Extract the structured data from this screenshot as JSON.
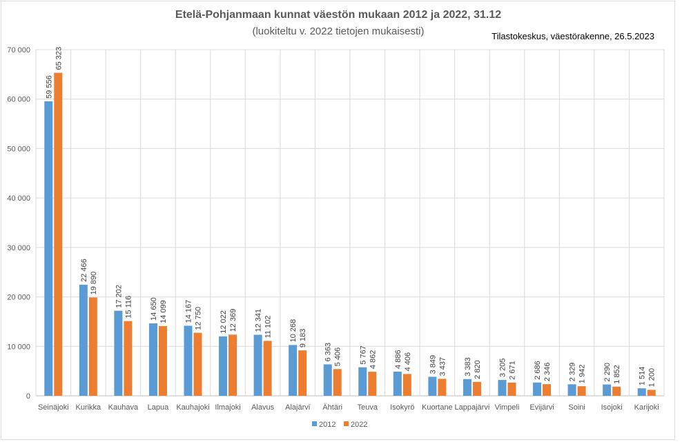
{
  "chart_data": {
    "type": "bar",
    "title": "Etelä-Pohjanmaan kunnat väestön mukaan 2012 ja 2022, 31.12",
    "subtitle": "(luokiteltu v. 2022 tietojen mukaisesti)",
    "source": "Tilastokeskus, väestörakenne, 26.5.2023",
    "xlabel": "",
    "ylabel": "",
    "ylim": [
      0,
      70000
    ],
    "yticks": [
      "0",
      "10 000",
      "20 000",
      "30 000",
      "40 000",
      "50 000",
      "60 000",
      "70 000"
    ],
    "grid": true,
    "legend_position": "bottom",
    "categories": [
      "Seinäjoki",
      "Kurikka",
      "Kauhava",
      "Lapua",
      "Kauhajoki",
      "Ilmajoki",
      "Alavus",
      "Alajärvi",
      "Ähtäri",
      "Teuva",
      "Isokyrö",
      "Kuortane",
      "Lappajärvi",
      "Vimpeli",
      "Evijärvi",
      "Soini",
      "Isojoki",
      "Karijoki"
    ],
    "series": [
      {
        "name": "2012",
        "color": "#5B9BD5",
        "values": [
          59556,
          22466,
          17202,
          14650,
          14167,
          12022,
          12341,
          10268,
          6363,
          5767,
          4886,
          3849,
          3383,
          3205,
          2686,
          2329,
          2290,
          1514
        ],
        "labels": [
          "59 556",
          "22 466",
          "17 202",
          "14 650",
          "14 167",
          "12 022",
          "12 341",
          "10 268",
          "6 363",
          "5 767",
          "4 886",
          "3 849",
          "3 383",
          "3 205",
          "2 686",
          "2 329",
          "2 290",
          "1 514"
        ]
      },
      {
        "name": "2022",
        "color": "#ED7D31",
        "values": [
          65323,
          19890,
          15116,
          14099,
          12750,
          12369,
          11102,
          9183,
          5406,
          4862,
          4406,
          3437,
          2820,
          2671,
          2346,
          1942,
          1852,
          1200
        ],
        "labels": [
          "65 323",
          "19 890",
          "15 116",
          "14 099",
          "12 750",
          "12 369",
          "11 102",
          "9 183",
          "5 406",
          "4 862",
          "4 406",
          "3 437",
          "2 820",
          "2 671",
          "2 346",
          "1 942",
          "1 852",
          "1 200"
        ]
      }
    ]
  }
}
